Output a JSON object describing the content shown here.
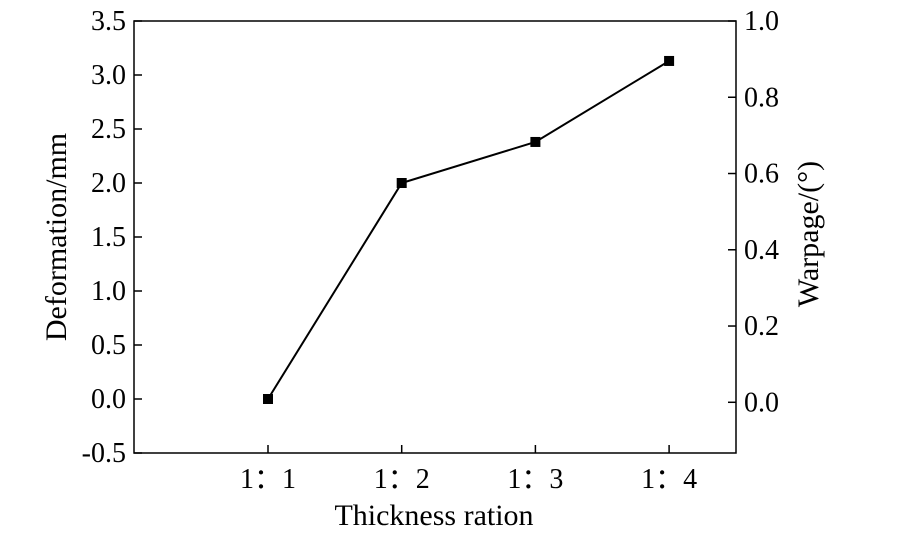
{
  "chart_data": {
    "type": "line",
    "title": "",
    "xlabel": "Thickness ration",
    "ylabel": "Deformation/mm",
    "y2label": "Warpage/(°)",
    "categories": [
      "1：1",
      "1：2",
      "1：3",
      "1：4"
    ],
    "series": [
      {
        "values": [
          0.0,
          2.0,
          2.38,
          3.13
        ]
      }
    ],
    "ylim": [
      -0.5,
      3.5
    ],
    "yticks": [
      "-0.5",
      "0.0",
      "0.5",
      "1.0",
      "1.5",
      "2.0",
      "2.5",
      "3.0",
      "3.5"
    ],
    "y2lim": [
      -0.133,
      1.0
    ],
    "y2ticks": [
      "0.0",
      "0.2",
      "0.4",
      "0.6",
      "0.8",
      "1.0"
    ],
    "marker": "square",
    "grid": false,
    "legend": "none",
    "colors": {
      "line": "#000000",
      "marker": "#000000"
    }
  }
}
